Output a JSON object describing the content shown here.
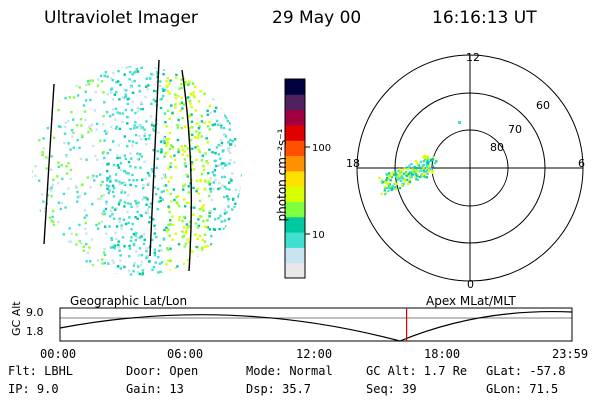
{
  "header": {
    "instrument": "Ultraviolet Imager",
    "date": "29 May 00",
    "time": "16:16:13 UT"
  },
  "colorbar": {
    "unit_label": "photon cm⁻²s⁻¹",
    "ticks": [
      "100",
      "10"
    ],
    "colors": [
      "#e8e8e8",
      "#c8e4f0",
      "#40e0d0",
      "#00c8a0",
      "#80ff40",
      "#d8ff00",
      "#ffe000",
      "#ff9000",
      "#ff5000",
      "#e00000",
      "#a00040",
      "#502060",
      "#000040"
    ]
  },
  "geo_panel": {
    "label": "Geographic Lat/Lon"
  },
  "polar_panel": {
    "label": "Apex MLat/MLT",
    "mlt_labels": {
      "top": "12",
      "left": "18",
      "right": "6",
      "bottom": "0"
    },
    "lat_labels": [
      "60",
      "70",
      "80"
    ]
  },
  "timeline": {
    "ylabel": "GC Alt",
    "yticks": [
      "9.0",
      "1.8"
    ],
    "xticks": [
      "00:00",
      "06:00",
      "12:00",
      "18:00",
      "23:59"
    ],
    "current_time_fraction": 0.677
  },
  "footer": {
    "flt": "Flt: LBHL",
    "ip": "IP:  9.0",
    "door": "Door: Open",
    "gain": "Gain: 13",
    "mode": "Mode: Normal",
    "dsp": "Dsp:   35.7",
    "gcalt": "GC Alt: 1.7 Re",
    "seq": "Seq: 39",
    "glat": "GLat:  -57.8",
    "glon": "GLon:  71.5"
  }
}
